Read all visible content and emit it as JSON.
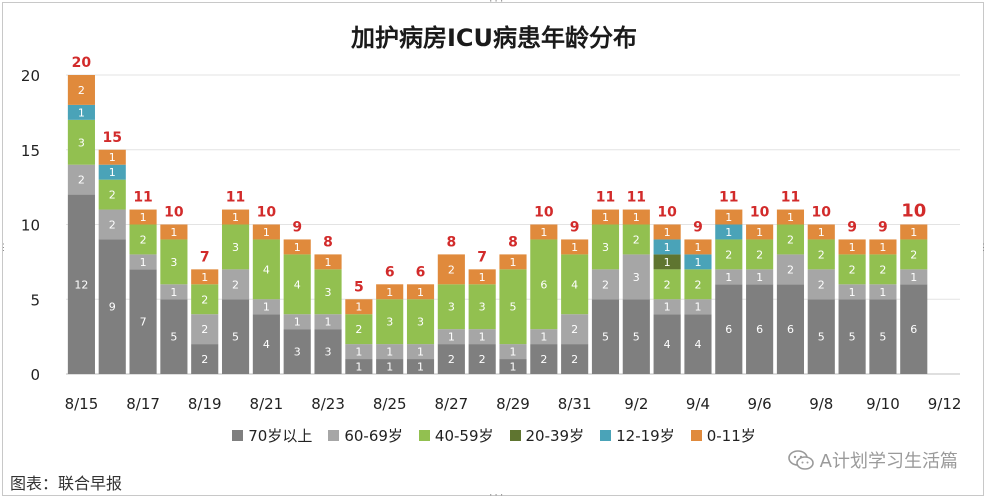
{
  "chart_data": {
    "type": "bar",
    "stacked": true,
    "title": "加护病房ICU病患年龄分布",
    "xlabel": "",
    "ylabel": "",
    "ylim": [
      0,
      20
    ],
    "yticks": [
      0,
      5,
      10,
      15,
      20
    ],
    "grid": true,
    "legend_position": "bottom",
    "categories": [
      "8/15",
      "8/16",
      "8/17",
      "8/18",
      "8/19",
      "8/20",
      "8/21",
      "8/22",
      "8/23",
      "8/24",
      "8/25",
      "8/26",
      "8/27",
      "8/28",
      "8/29",
      "8/30",
      "8/31",
      "9/1",
      "9/2",
      "9/3",
      "9/4",
      "9/5",
      "9/6",
      "9/7",
      "9/8",
      "9/9",
      "9/10",
      "9/11",
      "9/12"
    ],
    "xtick_labels": [
      "8/15",
      "8/17",
      "8/19",
      "8/21",
      "8/23",
      "8/25",
      "8/27",
      "8/29",
      "8/31",
      "9/2",
      "9/4",
      "9/6",
      "9/8",
      "9/10",
      "9/12"
    ],
    "series": [
      {
        "name": "70岁以上",
        "color": "#7f7f7f",
        "values": [
          12,
          9,
          7,
          5,
          2,
          5,
          4,
          3,
          3,
          1,
          1,
          1,
          2,
          2,
          1,
          2,
          2,
          5,
          5,
          4,
          4,
          6,
          6,
          6,
          5,
          5,
          5,
          6,
          0
        ]
      },
      {
        "name": "60-69岁",
        "color": "#a6a6a6",
        "values": [
          2,
          2,
          1,
          1,
          2,
          2,
          1,
          1,
          1,
          1,
          1,
          1,
          1,
          1,
          1,
          1,
          2,
          2,
          3,
          1,
          1,
          1,
          1,
          2,
          2,
          1,
          1,
          1,
          0
        ]
      },
      {
        "name": "40-59岁",
        "color": "#92c050",
        "values": [
          3,
          2,
          2,
          3,
          2,
          3,
          4,
          4,
          3,
          2,
          3,
          3,
          3,
          3,
          5,
          6,
          4,
          3,
          2,
          2,
          2,
          2,
          2,
          2,
          2,
          2,
          2,
          2,
          0
        ]
      },
      {
        "name": "20-39岁",
        "color": "#5f7530",
        "values": [
          0,
          0,
          0,
          0,
          0,
          0,
          0,
          0,
          0,
          0,
          0,
          0,
          0,
          0,
          0,
          0,
          0,
          0,
          0,
          1,
          0,
          0,
          0,
          0,
          0,
          0,
          0,
          0,
          0
        ]
      },
      {
        "name": "12-19岁",
        "color": "#4aa3b8",
        "values": [
          1,
          1,
          0,
          0,
          0,
          0,
          0,
          0,
          0,
          0,
          0,
          0,
          0,
          0,
          0,
          0,
          0,
          0,
          0,
          1,
          1,
          1,
          0,
          0,
          0,
          0,
          0,
          0,
          0
        ]
      },
      {
        "name": "0-11岁",
        "color": "#e08a3c",
        "values": [
          2,
          1,
          1,
          1,
          1,
          1,
          1,
          1,
          1,
          1,
          1,
          1,
          2,
          1,
          1,
          1,
          1,
          1,
          1,
          1,
          1,
          1,
          1,
          1,
          1,
          1,
          1,
          1,
          0
        ]
      }
    ],
    "totals": [
      20,
      15,
      11,
      10,
      7,
      11,
      10,
      9,
      8,
      5,
      6,
      6,
      8,
      7,
      8,
      10,
      9,
      11,
      11,
      10,
      9,
      11,
      10,
      11,
      10,
      9,
      9,
      10,
      null
    ],
    "total_label_color": "#d22b2b"
  },
  "footer": {
    "caption": "图表：联合早报",
    "wechat_account": "A计划学习生活篇"
  }
}
